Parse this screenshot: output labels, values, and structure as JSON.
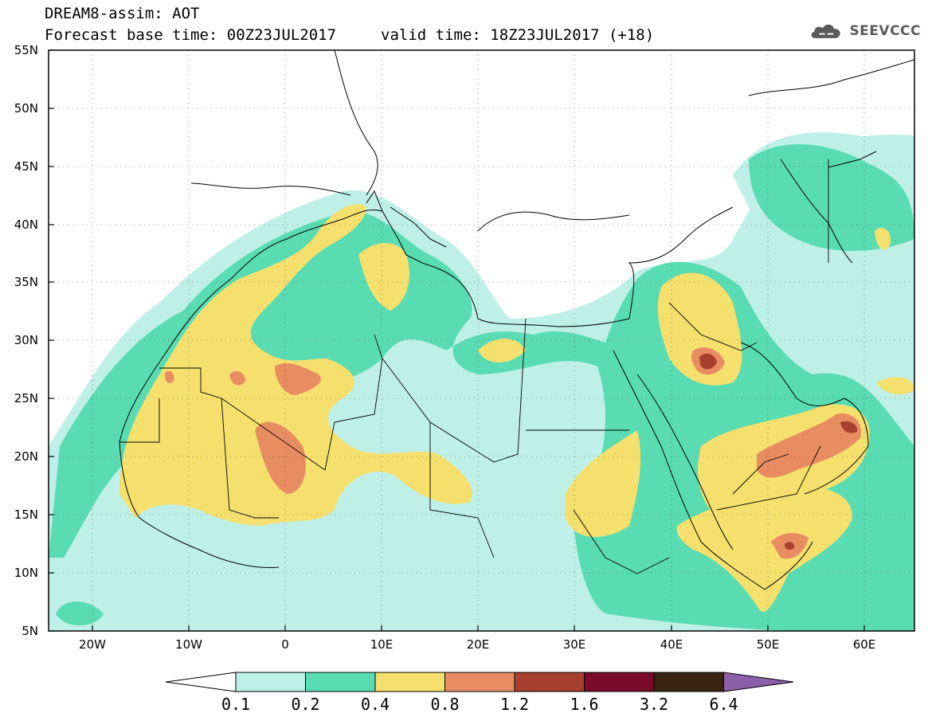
{
  "title": {
    "line1": "DREAM8-assim: AOT",
    "line2": "Forecast base time: 00Z23JUL2017",
    "valid": "valid time: 18Z23JUL2017 (+18)"
  },
  "logo": {
    "text": "SEEVCCC",
    "icon": "cloud-icon"
  },
  "axes": {
    "lat_labels": [
      "55N",
      "50N",
      "45N",
      "40N",
      "35N",
      "30N",
      "25N",
      "20N",
      "15N",
      "10N",
      "5N"
    ],
    "lon_labels": [
      "20W",
      "10W",
      "0",
      "10E",
      "20E",
      "30E",
      "40E",
      "50E",
      "60E"
    ],
    "lat_range": [
      5,
      55
    ],
    "lon_range": [
      -25,
      65
    ]
  },
  "legend": {
    "levels": [
      "0.1",
      "0.2",
      "0.4",
      "0.8",
      "1.2",
      "1.6",
      "3.2",
      "6.4"
    ],
    "colors": [
      "#ffffff",
      "#bff0e8",
      "#5adcb3",
      "#f5e06e",
      "#e88c62",
      "#a8402f",
      "#7a0a2a",
      "#3a2412",
      "#8c60a8"
    ]
  }
}
